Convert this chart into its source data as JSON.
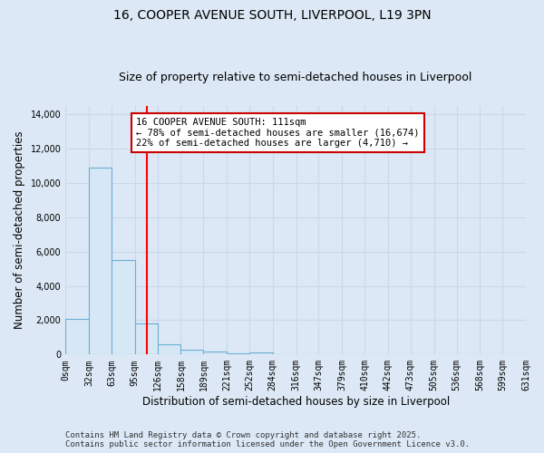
{
  "title": "16, COOPER AVENUE SOUTH, LIVERPOOL, L19 3PN",
  "subtitle": "Size of property relative to semi-detached houses in Liverpool",
  "xlabel": "Distribution of semi-detached houses by size in Liverpool",
  "ylabel": "Number of semi-detached properties",
  "bins": [
    0,
    32,
    63,
    95,
    126,
    158,
    189,
    221,
    252,
    284,
    316,
    347,
    379,
    410,
    442,
    473,
    505,
    536,
    568,
    599,
    631
  ],
  "bar_heights": [
    2100,
    10900,
    5500,
    1800,
    600,
    300,
    150,
    80,
    100,
    0,
    0,
    0,
    0,
    0,
    0,
    0,
    0,
    0,
    0,
    0
  ],
  "bar_color": "#d6e8f5",
  "bar_edge_color": "#6baed6",
  "red_line_x": 111,
  "ylim": [
    0,
    14500
  ],
  "yticks": [
    0,
    2000,
    4000,
    6000,
    8000,
    10000,
    12000,
    14000
  ],
  "annotation_title": "16 COOPER AVENUE SOUTH: 111sqm",
  "annotation_line1": "← 78% of semi-detached houses are smaller (16,674)",
  "annotation_line2": "22% of semi-detached houses are larger (4,710) →",
  "annotation_box_color": "#ffffff",
  "annotation_box_edge": "#cc0000",
  "footer_line1": "Contains HM Land Registry data © Crown copyright and database right 2025.",
  "footer_line2": "Contains public sector information licensed under the Open Government Licence v3.0.",
  "background_color": "#dce8f5",
  "grid_color": "#c8d8ec",
  "title_fontsize": 10,
  "subtitle_fontsize": 9,
  "axis_label_fontsize": 8.5,
  "tick_fontsize": 7,
  "footer_fontsize": 6.5,
  "annotation_fontsize": 7.5
}
